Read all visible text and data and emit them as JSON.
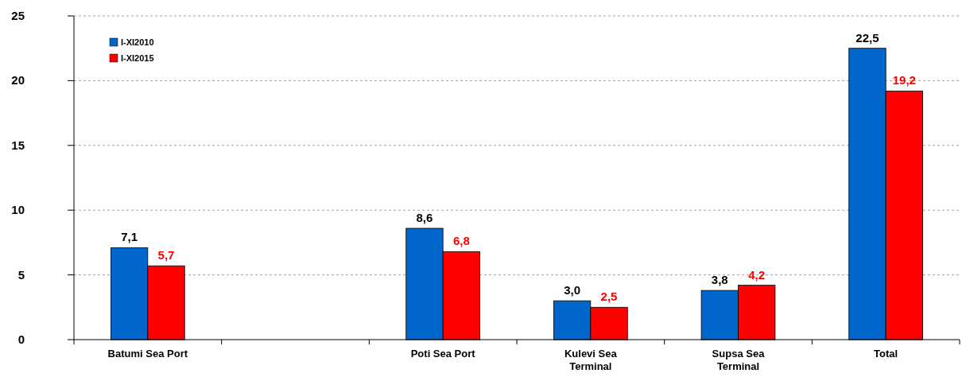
{
  "chart_data": {
    "type": "bar",
    "categories": [
      "Batumi Sea Port",
      null,
      "Poti Sea Port",
      "Kulevi Sea Terminal",
      "Supsa Sea Terminal",
      "Total"
    ],
    "series": [
      {
        "name": "I-XI2010",
        "color": "#0066cc",
        "values": [
          7.1,
          null,
          8.6,
          3.0,
          3.8,
          22.5
        ],
        "value_labels": [
          "7,1",
          null,
          "8,6",
          "3,0",
          "3,8",
          "22,5"
        ]
      },
      {
        "name": "I-XI2015",
        "color": "#ff0000",
        "values": [
          5.7,
          null,
          6.8,
          2.5,
          4.2,
          19.2
        ],
        "value_labels": [
          "5,7",
          null,
          "6,8",
          "2,5",
          "4,2",
          "19,2"
        ]
      }
    ],
    "ylim": [
      0,
      25
    ],
    "yticks": [
      0,
      5,
      10,
      15,
      20,
      25
    ],
    "grid": "y",
    "legend": "top left"
  }
}
